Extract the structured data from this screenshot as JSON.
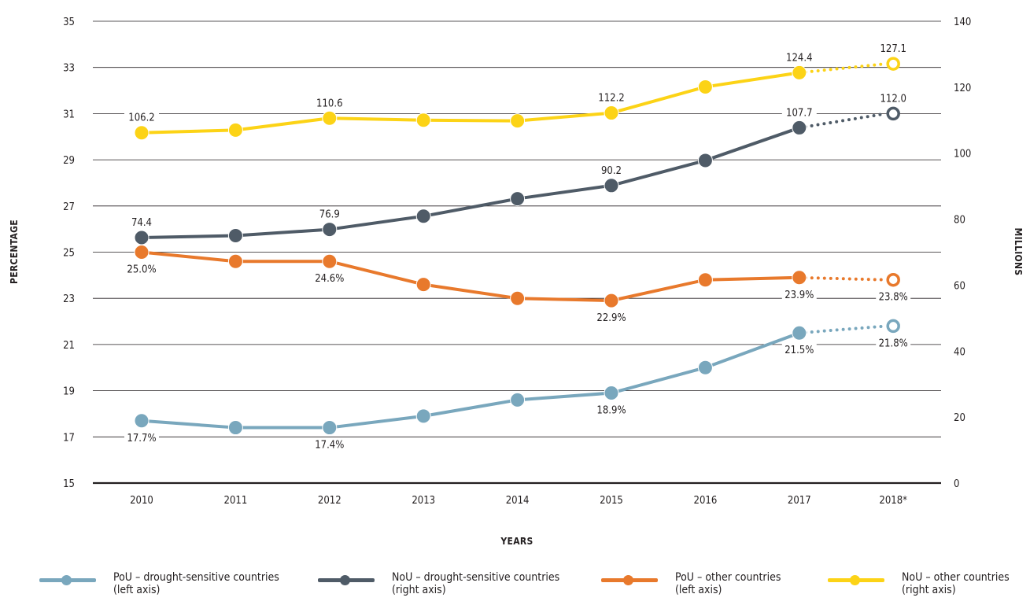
{
  "chart_data": {
    "type": "line",
    "categories": [
      "2010",
      "2011",
      "2012",
      "2013",
      "2014",
      "2015",
      "2016",
      "2017",
      "2018*"
    ],
    "xlabel": "YEARS",
    "ylabel_left": "PERCENTAGE",
    "ylabel_right": "MILLIONS",
    "ylim_left": [
      15,
      35
    ],
    "ylim_right": [
      0,
      140
    ],
    "yticks_left": [
      "15",
      "17",
      "19",
      "21",
      "23",
      "25",
      "27",
      "29",
      "31",
      "33",
      "35"
    ],
    "yticks_right": [
      "0",
      "20",
      "40",
      "60",
      "80",
      "100",
      "120",
      "140"
    ],
    "grid": true,
    "legend_position": "bottom",
    "projected_from_index": 7,
    "series": [
      {
        "name": "PoU – drought-sensitive countries",
        "axis_note": "(left axis)",
        "axis": "left",
        "color": "#79a7bd",
        "values": [
          17.7,
          17.4,
          17.4,
          17.9,
          18.6,
          18.9,
          20.0,
          21.5,
          21.8
        ],
        "labels": [
          "17.7%",
          "",
          "17.4%",
          "",
          "",
          "18.9%",
          "",
          "21.5%",
          "21.8%"
        ],
        "label_side": [
          "below",
          "",
          "below",
          "",
          "",
          "below",
          "",
          "below",
          "below"
        ]
      },
      {
        "name": "NoU – drought-sensitive countries",
        "axis_note": "(right axis)",
        "axis": "right",
        "color": "#4f5b67",
        "values": [
          74.4,
          75.0,
          76.9,
          80.9,
          86.2,
          90.2,
          97.8,
          107.7,
          112.0
        ],
        "labels": [
          "74.4",
          "",
          "76.9",
          "",
          "",
          "90.2",
          "",
          "107.7",
          "112.0"
        ],
        "label_side": [
          "above",
          "",
          "above",
          "",
          "",
          "above",
          "",
          "above",
          "above"
        ]
      },
      {
        "name": "PoU – other countries",
        "axis_note": "(left axis)",
        "axis": "left",
        "color": "#e8792c",
        "values": [
          25.0,
          24.6,
          24.6,
          23.6,
          23.0,
          22.9,
          23.8,
          23.9,
          23.8
        ],
        "labels": [
          "25.0%",
          "",
          "24.6%",
          "",
          "",
          "22.9%",
          "",
          "23.9%",
          "23.8%"
        ],
        "label_side": [
          "below",
          "",
          "below",
          "",
          "",
          "below",
          "",
          "below",
          "below"
        ]
      },
      {
        "name": "NoU – other countries",
        "axis_note": "(right axis)",
        "axis": "right",
        "color": "#fcd316",
        "values": [
          106.2,
          107.0,
          110.6,
          110.0,
          109.8,
          112.2,
          120.1,
          124.4,
          127.1
        ],
        "labels": [
          "106.2",
          "",
          "110.6",
          "",
          "",
          "112.2",
          "",
          "124.4",
          "127.1"
        ],
        "label_side": [
          "above",
          "",
          "above",
          "",
          "",
          "above",
          "",
          "above",
          "above"
        ]
      }
    ]
  }
}
